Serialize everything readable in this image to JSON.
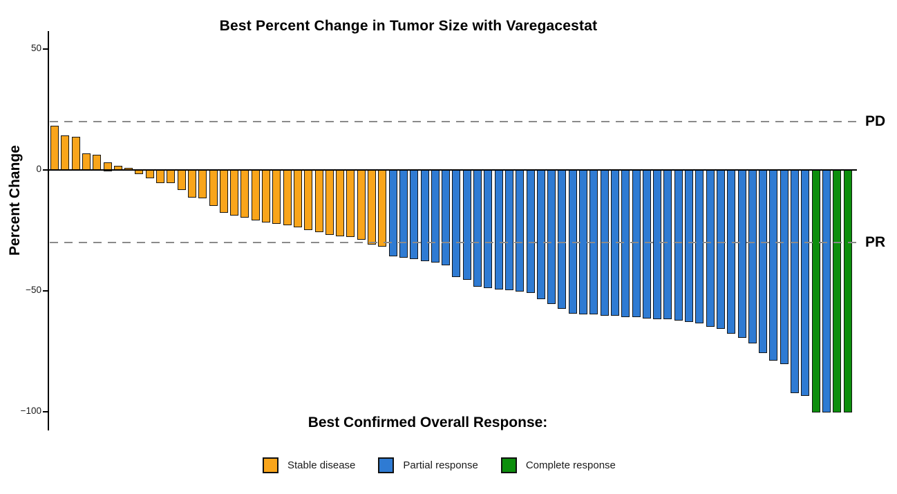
{
  "title": "Best Percent Change in Tumor Size with Varegacestat",
  "y_axis": {
    "label": "Percent Change",
    "ticks": [
      {
        "value": 50,
        "label": "50"
      },
      {
        "value": 0,
        "label": "0"
      },
      {
        "value": -50,
        "label": "−50"
      },
      {
        "value": -100,
        "label": "−100"
      }
    ]
  },
  "reference_lines": [
    {
      "value": 20,
      "label": "PD"
    },
    {
      "value": -30,
      "label": "PR"
    }
  ],
  "footer": {
    "label": "Best Confirmed Overall Response:"
  },
  "legend": [
    {
      "key": "SD",
      "label": "Stable disease",
      "color": "#F9A51B"
    },
    {
      "key": "PR",
      "label": "Partial response",
      "color": "#2F7BD3"
    },
    {
      "key": "CR",
      "label": "Complete response",
      "color": "#0D8E0D"
    }
  ],
  "chart_data": {
    "type": "bar",
    "subtype": "waterfall",
    "title": "Best Percent Change in Tumor Size with Varegacestat",
    "xlabel": "Best Confirmed Overall Response:",
    "ylabel": "Percent Change",
    "ylim": [
      -105,
      57
    ],
    "yticks": [
      50,
      0,
      -50,
      -100
    ],
    "grid": false,
    "legend_position": "bottom",
    "reference_lines": {
      "PD": 20,
      "PR": -30
    },
    "colors": {
      "SD": "#F9A51B",
      "PR": "#2F7BD3",
      "CR": "#0D8E0D"
    },
    "bar_outline": "#141414",
    "bars": [
      {
        "v": 18,
        "r": "SD"
      },
      {
        "v": 14,
        "r": "SD"
      },
      {
        "v": 13.5,
        "r": "SD"
      },
      {
        "v": 6.5,
        "r": "SD"
      },
      {
        "v": 6,
        "r": "SD"
      },
      {
        "v": 3,
        "r": "SD"
      },
      {
        "v": 1.5,
        "r": "SD"
      },
      {
        "v": 0.5,
        "r": "SD"
      },
      {
        "v": -1.5,
        "r": "SD"
      },
      {
        "v": -3,
        "r": "SD"
      },
      {
        "v": -5,
        "r": "SD"
      },
      {
        "v": -5,
        "r": "SD"
      },
      {
        "v": -8,
        "r": "SD"
      },
      {
        "v": -11,
        "r": "SD"
      },
      {
        "v": -11.5,
        "r": "SD"
      },
      {
        "v": -14.5,
        "r": "SD"
      },
      {
        "v": -17.5,
        "r": "SD"
      },
      {
        "v": -18.5,
        "r": "SD"
      },
      {
        "v": -19.5,
        "r": "SD"
      },
      {
        "v": -20.5,
        "r": "SD"
      },
      {
        "v": -21.5,
        "r": "SD"
      },
      {
        "v": -22,
        "r": "SD"
      },
      {
        "v": -22.5,
        "r": "SD"
      },
      {
        "v": -23.5,
        "r": "SD"
      },
      {
        "v": -24.5,
        "r": "SD"
      },
      {
        "v": -25.5,
        "r": "SD"
      },
      {
        "v": -26.5,
        "r": "SD"
      },
      {
        "v": -27,
        "r": "SD"
      },
      {
        "v": -27.5,
        "r": "SD"
      },
      {
        "v": -28.5,
        "r": "SD"
      },
      {
        "v": -30.5,
        "r": "SD"
      },
      {
        "v": -31.5,
        "r": "SD"
      },
      {
        "v": -35.5,
        "r": "PR"
      },
      {
        "v": -36,
        "r": "PR"
      },
      {
        "v": -36.5,
        "r": "PR"
      },
      {
        "v": -37.5,
        "r": "PR"
      },
      {
        "v": -38,
        "r": "PR"
      },
      {
        "v": -39,
        "r": "PR"
      },
      {
        "v": -44,
        "r": "PR"
      },
      {
        "v": -45,
        "r": "PR"
      },
      {
        "v": -48,
        "r": "PR"
      },
      {
        "v": -48.5,
        "r": "PR"
      },
      {
        "v": -49,
        "r": "PR"
      },
      {
        "v": -49.5,
        "r": "PR"
      },
      {
        "v": -50,
        "r": "PR"
      },
      {
        "v": -50.5,
        "r": "PR"
      },
      {
        "v": -53,
        "r": "PR"
      },
      {
        "v": -55,
        "r": "PR"
      },
      {
        "v": -57,
        "r": "PR"
      },
      {
        "v": -59,
        "r": "PR"
      },
      {
        "v": -59.5,
        "r": "PR"
      },
      {
        "v": -59.5,
        "r": "PR"
      },
      {
        "v": -60,
        "r": "PR"
      },
      {
        "v": -60,
        "r": "PR"
      },
      {
        "v": -60.5,
        "r": "PR"
      },
      {
        "v": -60.5,
        "r": "PR"
      },
      {
        "v": -61,
        "r": "PR"
      },
      {
        "v": -61.5,
        "r": "PR"
      },
      {
        "v": -61.5,
        "r": "PR"
      },
      {
        "v": -62,
        "r": "PR"
      },
      {
        "v": -62.5,
        "r": "PR"
      },
      {
        "v": -63,
        "r": "PR"
      },
      {
        "v": -64.5,
        "r": "PR"
      },
      {
        "v": -65.5,
        "r": "PR"
      },
      {
        "v": -67.5,
        "r": "PR"
      },
      {
        "v": -69,
        "r": "PR"
      },
      {
        "v": -71.5,
        "r": "PR"
      },
      {
        "v": -75.5,
        "r": "PR"
      },
      {
        "v": -78.5,
        "r": "PR"
      },
      {
        "v": -80,
        "r": "PR"
      },
      {
        "v": -92,
        "r": "PR"
      },
      {
        "v": -93,
        "r": "PR"
      },
      {
        "v": -100,
        "r": "CR"
      },
      {
        "v": -100,
        "r": "PR"
      },
      {
        "v": -100,
        "r": "CR"
      },
      {
        "v": -100,
        "r": "CR"
      }
    ]
  }
}
